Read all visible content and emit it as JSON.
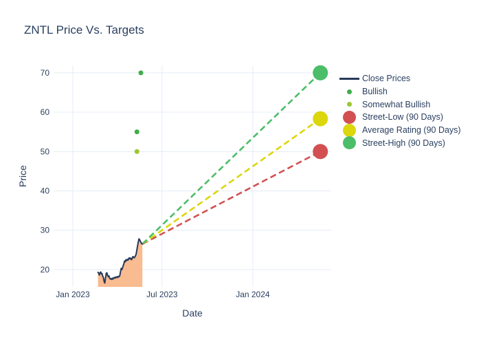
{
  "title": "ZNTL Price Vs. Targets",
  "colors": {
    "text": "#2a3f5f",
    "gridline": "#e5ecf6",
    "close_line": "#26395a",
    "close_fill": "#f9bb90",
    "bullish": "#41ad4a",
    "somewhat_bullish": "#9cc62e",
    "street_low": "#d25052",
    "average_rating": "#dcd60d",
    "street_high": "#4cbd68",
    "background": "#ffffff"
  },
  "legend": {
    "items": [
      {
        "label": "Close Prices",
        "sample": "line",
        "color": "#26395a"
      },
      {
        "label": "Bullish",
        "sample": "dot-small",
        "color": "#41ad4a"
      },
      {
        "label": "Somewhat Bullish",
        "sample": "dot-small",
        "color": "#9cc62e"
      },
      {
        "label": "Street-Low (90 Days)",
        "sample": "dot-large",
        "color": "#d25052"
      },
      {
        "label": "Average Rating (90 Days)",
        "sample": "dot-large",
        "color": "#dcd60d"
      },
      {
        "label": "Street-High (90 Days)",
        "sample": "dot-large",
        "color": "#4cbd68"
      }
    ]
  },
  "chart_data": {
    "type": "line",
    "title": "ZNTL Price Vs. Targets",
    "xlabel": "Date",
    "ylabel": "Price",
    "x_unit": "days_since_2023-01-01",
    "x_range": [
      -39,
      524
    ],
    "y_range": [
      15.6,
      71.9
    ],
    "x_ticks": [
      {
        "value": 0,
        "label": "Jan 2023"
      },
      {
        "value": 181,
        "label": "Jul 2023"
      },
      {
        "value": 365,
        "label": "Jan 2024"
      }
    ],
    "y_ticks": [
      20,
      30,
      40,
      50,
      60,
      70
    ],
    "grid": true,
    "legend_position": "right",
    "series": [
      {
        "name": "Close Prices",
        "type": "area",
        "color": "#26395a",
        "fill_color": "#f9bb90",
        "x_start": 51,
        "x_end": 141,
        "values": [
          19.3,
          19.1,
          18.6,
          19.2,
          19.4,
          18.9,
          19.0,
          18.3,
          18.0,
          17.0,
          16.6,
          17.8,
          19.0,
          19.2,
          18.6,
          18.2,
          18.4,
          17.9,
          17.6,
          17.7,
          17.5,
          17.8,
          17.6,
          17.9,
          18.0,
          17.8,
          18.1,
          18.0,
          18.2,
          18.0,
          18.3,
          18.2,
          18.5,
          19.5,
          20.3,
          20.0,
          20.5,
          21.0,
          21.5,
          22.2,
          22.0,
          22.5,
          22.3,
          22.6,
          22.4,
          22.8,
          23.0,
          22.7,
          22.9,
          22.5,
          22.8,
          23.3,
          23.2,
          23.0,
          23.2,
          23.5,
          24.0,
          25.0,
          26.0,
          27.0,
          27.8,
          27.6,
          27.2,
          26.9,
          26.6,
          26.5
        ]
      },
      {
        "name": "Bullish",
        "type": "scatter",
        "color": "#41ad4a",
        "marker_size": 7,
        "points": [
          {
            "x": 130,
            "y": 55
          },
          {
            "x": 138,
            "y": 70
          }
        ]
      },
      {
        "name": "Somewhat Bullish",
        "type": "scatter",
        "color": "#9cc62e",
        "marker_size": 7,
        "points": [
          {
            "x": 130,
            "y": 50
          }
        ]
      },
      {
        "name": "Street-Low (90 Days)",
        "type": "target",
        "color": "#d25052",
        "marker_size": 22,
        "line_from": {
          "x": 141,
          "y": 26.5
        },
        "point": {
          "x": 502,
          "y": 50
        }
      },
      {
        "name": "Average Rating (90 Days)",
        "type": "target",
        "color": "#dcd60d",
        "marker_size": 22,
        "line_from": {
          "x": 141,
          "y": 26.5
        },
        "point": {
          "x": 502,
          "y": 58.33
        }
      },
      {
        "name": "Street-High (90 Days)",
        "type": "target",
        "color": "#4cbd68",
        "marker_size": 22,
        "line_from": {
          "x": 141,
          "y": 26.5
        },
        "point": {
          "x": 502,
          "y": 70
        }
      }
    ]
  }
}
